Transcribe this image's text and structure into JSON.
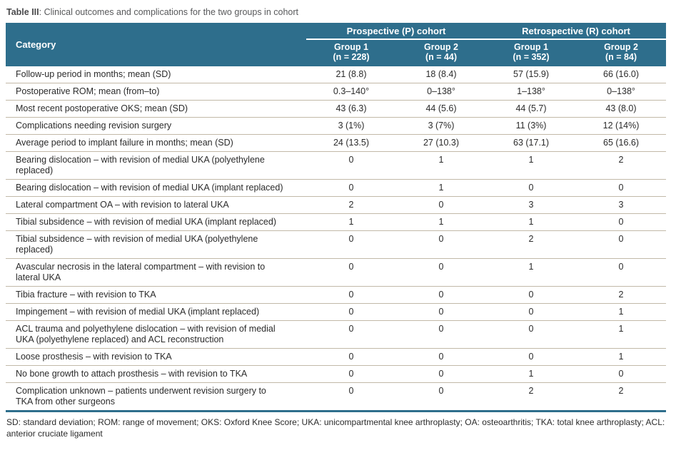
{
  "caption": {
    "label": "Table III",
    "text": ": Clinical outcomes and complications for the two groups in cohort"
  },
  "table": {
    "category_header": "Category",
    "cohorts": [
      {
        "label": "Prospective (P) cohort",
        "groups": [
          {
            "name": "Group 1",
            "n": "(n = 228)"
          },
          {
            "name": "Group 2",
            "n": "(n = 44)"
          }
        ]
      },
      {
        "label": "Retrospective (R) cohort",
        "groups": [
          {
            "name": "Group 1",
            "n": "(n = 352)"
          },
          {
            "name": "Group 2",
            "n": "(n = 84)"
          }
        ]
      }
    ],
    "rows": [
      {
        "category": "Follow-up period in months; mean (SD)",
        "values": [
          "21 (8.8)",
          "18 (8.4)",
          "57 (15.9)",
          "66 (16.0)"
        ]
      },
      {
        "category": "Postoperative ROM; mean (from–to)",
        "values": [
          "0.3–140°",
          "0–138°",
          "1–138°",
          "0–138°"
        ]
      },
      {
        "category": "Most recent postoperative OKS; mean (SD)",
        "values": [
          "43 (6.3)",
          "44 (5.6)",
          "44 (5.7)",
          "43 (8.0)"
        ]
      },
      {
        "category": "Complications needing revision surgery",
        "values": [
          "3 (1%)",
          "3 (7%)",
          "11 (3%)",
          "12 (14%)"
        ]
      },
      {
        "category": "Average period to implant failure in months; mean (SD)",
        "values": [
          "24 (13.5)",
          "27 (10.3)",
          "63 (17.1)",
          "65 (16.6)"
        ]
      },
      {
        "category": "Bearing dislocation – with revision of medial UKA (polyethylene\nreplaced)",
        "values": [
          "0",
          "1",
          "1",
          "2"
        ]
      },
      {
        "category": "Bearing dislocation – with revision of medial UKA (implant replaced)",
        "values": [
          "0",
          "1",
          "0",
          "0"
        ]
      },
      {
        "category": "Lateral compartment OA – with revision to lateral UKA",
        "values": [
          "2",
          "0",
          "3",
          "3"
        ]
      },
      {
        "category": "Tibial subsidence – with revision of medial UKA (implant replaced)",
        "values": [
          "1",
          "1",
          "1",
          "0"
        ]
      },
      {
        "category": "Tibial subsidence – with revision of medial UKA (polyethylene\nreplaced)",
        "values": [
          "0",
          "0",
          "2",
          "0"
        ]
      },
      {
        "category": "Avascular necrosis in the lateral compartment – with revision to\nlateral UKA",
        "values": [
          "0",
          "0",
          "1",
          "0"
        ]
      },
      {
        "category": "Tibia fracture – with revision to TKA",
        "values": [
          "0",
          "0",
          "0",
          "2"
        ]
      },
      {
        "category": "Impingement – with revision of medial UKA (implant replaced)",
        "values": [
          "0",
          "0",
          "0",
          "1"
        ]
      },
      {
        "category": "ACL trauma and polyethylene dislocation – with revision of medial\nUKA (polyethylene replaced) and ACL reconstruction",
        "values": [
          "0",
          "0",
          "0",
          "1"
        ]
      },
      {
        "category": "Loose prosthesis – with revision to TKA",
        "values": [
          "0",
          "0",
          "0",
          "1"
        ]
      },
      {
        "category": "No bone growth to attach prosthesis – with revision to TKA",
        "values": [
          "0",
          "0",
          "1",
          "0"
        ]
      },
      {
        "category": "Complication unknown – patients underwent revision surgery to\nTKA from other surgeons",
        "values": [
          "0",
          "0",
          "2",
          "2"
        ]
      }
    ]
  },
  "footnote": "SD: standard deviation; ROM: range of movement; OKS: Oxford Knee Score; UKA: unicompartmental knee arthroplasty; OA: osteoarthritis; TKA: total knee arthroplasty; ACL: anterior cruciate ligament",
  "colors": {
    "header_bg": "#2e6e8c",
    "row_divider": "#c2b9a8",
    "accent_border": "#2e6e8c"
  }
}
